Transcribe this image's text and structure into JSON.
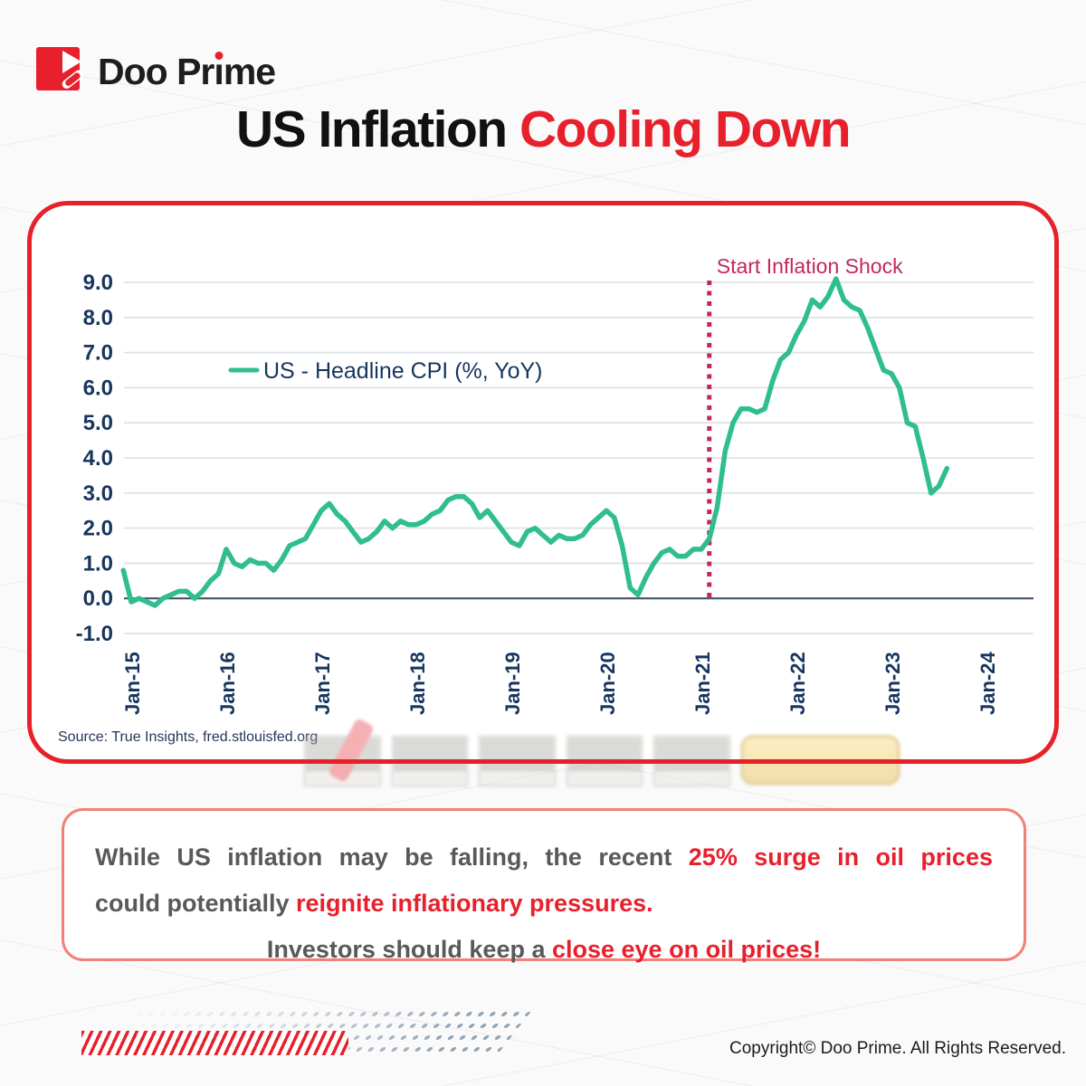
{
  "brand": {
    "name_pre": "Doo Pr",
    "name_i": "ı",
    "name_post": "me"
  },
  "title": {
    "black": "US Inflation ",
    "red": "Cooling Down"
  },
  "chart_data": {
    "type": "line",
    "legend": "US - Headline CPI (%, YoY)",
    "line_color": "#2fbe8c",
    "annotation": {
      "label": "Start Inflation Shock",
      "month_index": 73,
      "color": "#c4275d"
    },
    "ylim": [
      -1.0,
      9.0
    ],
    "y_ticks": [
      "9.0",
      "8.0",
      "7.0",
      "6.0",
      "5.0",
      "4.0",
      "3.0",
      "2.0",
      "1.0",
      "0.0",
      "-1.0"
    ],
    "x_ticks": [
      "Jan-15",
      "Jan-16",
      "Jan-17",
      "Jan-18",
      "Jan-19",
      "Jan-20",
      "Jan-21",
      "Jan-22",
      "Jan-23",
      "Jan-24"
    ],
    "start_offset_months": -1,
    "series": [
      {
        "name": "US - Headline CPI (%, YoY)",
        "values": [
          0.8,
          -0.1,
          0.0,
          -0.1,
          -0.2,
          0.0,
          0.1,
          0.2,
          0.2,
          0.0,
          0.2,
          0.5,
          0.7,
          1.4,
          1.0,
          0.9,
          1.1,
          1.0,
          1.0,
          0.8,
          1.1,
          1.5,
          1.6,
          1.7,
          2.1,
          2.5,
          2.7,
          2.4,
          2.2,
          1.9,
          1.6,
          1.7,
          1.9,
          2.2,
          2.0,
          2.2,
          2.1,
          2.1,
          2.2,
          2.4,
          2.5,
          2.8,
          2.9,
          2.9,
          2.7,
          2.3,
          2.5,
          2.2,
          1.9,
          1.6,
          1.5,
          1.9,
          2.0,
          1.8,
          1.6,
          1.8,
          1.7,
          1.7,
          1.8,
          2.1,
          2.3,
          2.5,
          2.3,
          1.5,
          0.3,
          0.1,
          0.6,
          1.0,
          1.3,
          1.4,
          1.2,
          1.2,
          1.4,
          1.4,
          1.7,
          2.6,
          4.2,
          5.0,
          5.4,
          5.4,
          5.3,
          5.4,
          6.2,
          6.8,
          7.0,
          7.5,
          7.9,
          8.5,
          8.3,
          8.6,
          9.1,
          8.5,
          8.3,
          8.2,
          7.7,
          7.1,
          6.5,
          6.4,
          6.0,
          5.0,
          4.9,
          4.0,
          3.0,
          3.2,
          3.7
        ]
      }
    ],
    "source": "Source: True Insights, fred.stlouisfed.org"
  },
  "commentary": {
    "line1_gray": "While US inflation may be falling, the recent ",
    "line1_red": "25% surge in oil prices",
    "line2_gray": "could potentially ",
    "line2_red": "reignite inflationary pressures.",
    "line3_gray": "Investors should keep a ",
    "line3_red": "close eye on oil prices!"
  },
  "footer": {
    "copyright": "Copyright© Doo Prime. All Rights Reserved."
  }
}
